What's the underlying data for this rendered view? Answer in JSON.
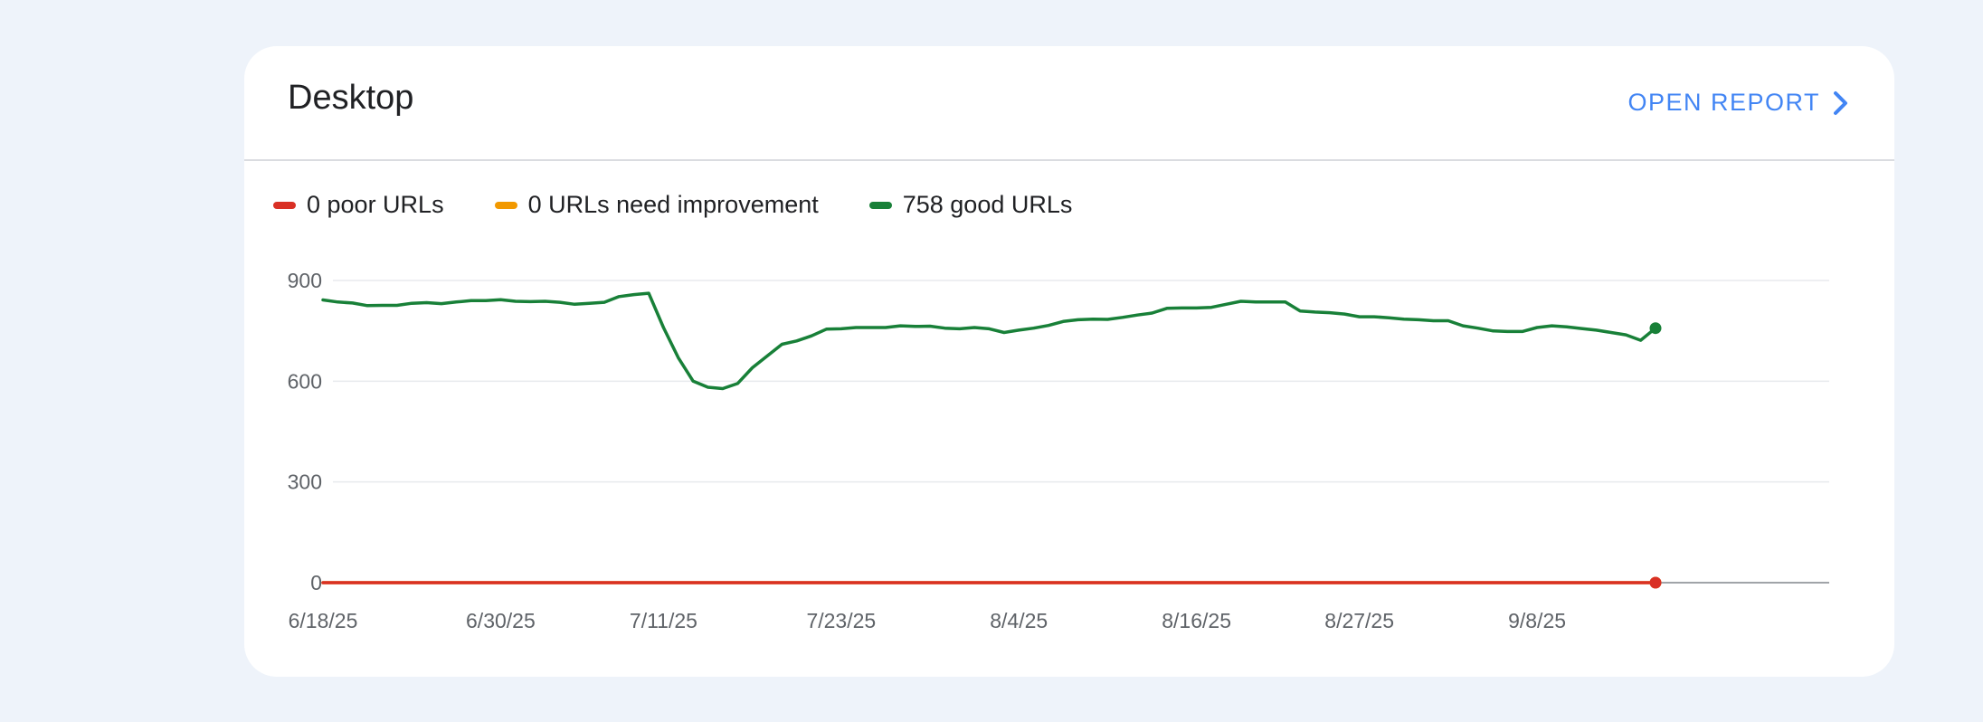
{
  "card": {
    "title": "Desktop",
    "open_report_label": "OPEN REPORT"
  },
  "legend": [
    {
      "label": "0 poor URLs",
      "color": "#d93025"
    },
    {
      "label": "0 URLs need improvement",
      "color": "#f29900"
    },
    {
      "label": "758 good URLs",
      "color": "#188038"
    }
  ],
  "chart_data": {
    "type": "line",
    "title": "",
    "xlabel": "",
    "ylabel": "",
    "ylim": [
      0,
      900
    ],
    "yticks": [
      0,
      300,
      600,
      900
    ],
    "xtick_labels": [
      "6/18/25",
      "6/30/25",
      "7/11/25",
      "7/23/25",
      "8/4/25",
      "8/16/25",
      "8/27/25",
      "9/8/25"
    ],
    "grid": true,
    "legend_position": "top-left",
    "x": [
      "6/18/25",
      "6/19/25",
      "6/20/25",
      "6/21/25",
      "6/22/25",
      "6/23/25",
      "6/24/25",
      "6/25/25",
      "6/26/25",
      "6/27/25",
      "6/28/25",
      "6/29/25",
      "6/30/25",
      "7/1/25",
      "7/2/25",
      "7/3/25",
      "7/4/25",
      "7/5/25",
      "7/6/25",
      "7/7/25",
      "7/8/25",
      "7/9/25",
      "7/10/25",
      "7/11/25",
      "7/12/25",
      "7/13/25",
      "7/14/25",
      "7/15/25",
      "7/16/25",
      "7/17/25",
      "7/18/25",
      "7/19/25",
      "7/20/25",
      "7/21/25",
      "7/22/25",
      "7/23/25",
      "7/24/25",
      "7/25/25",
      "7/26/25",
      "7/27/25",
      "7/28/25",
      "7/29/25",
      "7/30/25",
      "7/31/25",
      "8/1/25",
      "8/2/25",
      "8/3/25",
      "8/4/25",
      "8/5/25",
      "8/6/25",
      "8/7/25",
      "8/8/25",
      "8/9/25",
      "8/10/25",
      "8/11/25",
      "8/12/25",
      "8/13/25",
      "8/14/25",
      "8/15/25",
      "8/16/25",
      "8/17/25",
      "8/18/25",
      "8/19/25",
      "8/20/25",
      "8/21/25",
      "8/22/25",
      "8/23/25",
      "8/24/25",
      "8/25/25",
      "8/26/25",
      "8/27/25",
      "8/28/25",
      "8/29/25",
      "8/30/25",
      "8/31/25",
      "9/1/25",
      "9/2/25",
      "9/3/25",
      "9/4/25",
      "9/5/25",
      "9/6/25",
      "9/7/25",
      "9/8/25",
      "9/9/25",
      "9/10/25",
      "9/11/25",
      "9/12/25",
      "9/13/25",
      "9/14/25",
      "9/15/25",
      "9/16/25"
    ],
    "series": [
      {
        "name": "good URLs",
        "color": "#188038",
        "values": [
          842,
          836,
          833,
          825,
          826,
          826,
          832,
          834,
          831,
          836,
          840,
          840,
          843,
          838,
          837,
          838,
          835,
          829,
          832,
          835,
          852,
          858,
          862,
          760,
          670,
          600,
          582,
          578,
          593,
          640,
          675,
          710,
          720,
          735,
          755,
          756,
          760,
          760,
          760,
          765,
          763,
          764,
          758,
          756,
          760,
          756,
          745,
          752,
          758,
          766,
          778,
          783,
          785,
          784,
          790,
          797,
          803,
          817,
          818,
          818,
          820,
          829,
          838,
          836,
          836,
          836,
          809,
          806,
          804,
          800,
          792,
          792,
          789,
          785,
          783,
          780,
          780,
          765,
          758,
          750,
          748,
          748,
          760,
          765,
          762,
          757,
          752,
          745,
          738,
          722,
          758
        ]
      },
      {
        "name": "URLs need improvement",
        "color": "#f29900",
        "values": [
          0,
          0,
          0,
          0,
          0,
          0,
          0,
          0,
          0,
          0,
          0,
          0,
          0,
          0,
          0,
          0,
          0,
          0,
          0,
          0,
          0,
          0,
          0,
          0,
          0,
          0,
          0,
          0,
          0,
          0,
          0,
          0,
          0,
          0,
          0,
          0,
          0,
          0,
          0,
          0,
          0,
          0,
          0,
          0,
          0,
          0,
          0,
          0,
          0,
          0,
          0,
          0,
          0,
          0,
          0,
          0,
          0,
          0,
          0,
          0,
          0,
          0,
          0,
          0,
          0,
          0,
          0,
          0,
          0,
          0,
          0,
          0,
          0,
          0,
          0,
          0,
          0,
          0,
          0,
          0,
          0,
          0,
          0,
          0,
          0,
          0,
          0,
          0,
          0,
          0,
          0
        ]
      },
      {
        "name": "poor URLs",
        "color": "#d93025",
        "values": [
          0,
          0,
          0,
          0,
          0,
          0,
          0,
          0,
          0,
          0,
          0,
          0,
          0,
          0,
          0,
          0,
          0,
          0,
          0,
          0,
          0,
          0,
          0,
          0,
          0,
          0,
          0,
          0,
          0,
          0,
          0,
          0,
          0,
          0,
          0,
          0,
          0,
          0,
          0,
          0,
          0,
          0,
          0,
          0,
          0,
          0,
          0,
          0,
          0,
          0,
          0,
          0,
          0,
          0,
          0,
          0,
          0,
          0,
          0,
          0,
          0,
          0,
          0,
          0,
          0,
          0,
          0,
          0,
          0,
          0,
          0,
          0,
          0,
          0,
          0,
          0,
          0,
          0,
          0,
          0,
          0,
          0,
          0,
          0,
          0,
          0,
          0,
          0,
          0,
          0,
          0
        ]
      }
    ]
  }
}
